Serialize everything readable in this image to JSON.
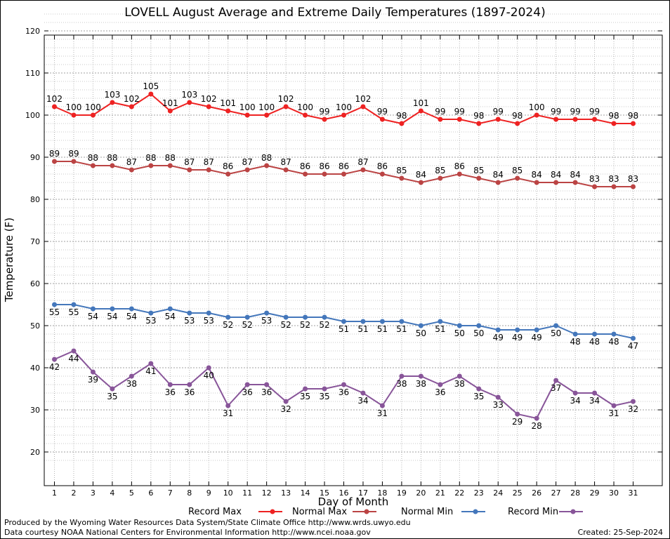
{
  "chart_data": {
    "type": "line",
    "title": "LOVELL August Average and Extreme Daily Temperatures (1897-2024)",
    "xlabel": "Day of Month",
    "ylabel": "Temperature (F)",
    "x": [
      1,
      2,
      3,
      4,
      5,
      6,
      7,
      8,
      9,
      10,
      11,
      12,
      13,
      14,
      15,
      16,
      17,
      18,
      19,
      20,
      21,
      22,
      23,
      24,
      25,
      26,
      27,
      28,
      29,
      30,
      31
    ],
    "ylim": [
      17,
      125
    ],
    "yticks": [
      20,
      30,
      40,
      50,
      60,
      70,
      80,
      90,
      100,
      110,
      120
    ],
    "grid": true,
    "legend_position": "bottom",
    "series": [
      {
        "name": "Record Max",
        "color": "#ee2222",
        "values": [
          102,
          100,
          100,
          103,
          102,
          105,
          101,
          103,
          102,
          101,
          100,
          100,
          102,
          100,
          99,
          100,
          102,
          99,
          98,
          101,
          99,
          99,
          98,
          99,
          98,
          100,
          99,
          99,
          99,
          98,
          98
        ]
      },
      {
        "name": "Normal Max",
        "color": "#bb4444",
        "values": [
          89,
          89,
          88,
          88,
          87,
          88,
          88,
          87,
          87,
          86,
          87,
          88,
          87,
          86,
          86,
          86,
          87,
          86,
          85,
          84,
          85,
          86,
          85,
          84,
          85,
          84,
          84,
          84,
          83,
          83,
          83
        ]
      },
      {
        "name": "Normal Min",
        "color": "#4477bb",
        "values": [
          55,
          55,
          54,
          54,
          54,
          53,
          54,
          53,
          53,
          52,
          52,
          53,
          52,
          52,
          52,
          51,
          51,
          51,
          51,
          50,
          51,
          50,
          50,
          49,
          49,
          49,
          50,
          48,
          48,
          48,
          47
        ]
      },
      {
        "name": "Record Min",
        "color": "#885599",
        "values": [
          42,
          44,
          39,
          35,
          38,
          41,
          36,
          36,
          40,
          31,
          36,
          36,
          32,
          35,
          35,
          36,
          34,
          31,
          38,
          38,
          36,
          38,
          35,
          33,
          29,
          28,
          37,
          34,
          34,
          31,
          32
        ]
      }
    ]
  },
  "footer": {
    "produced_by": "Produced by the Wyoming Water Resources Data System/State Climate Office http://www.wrds.uwyo.edu",
    "courtesy": "Data courtesy NOAA National Centers for Environmental Information http://www.ncei.noaa.gov",
    "created": "Created: 25-Sep-2024"
  }
}
